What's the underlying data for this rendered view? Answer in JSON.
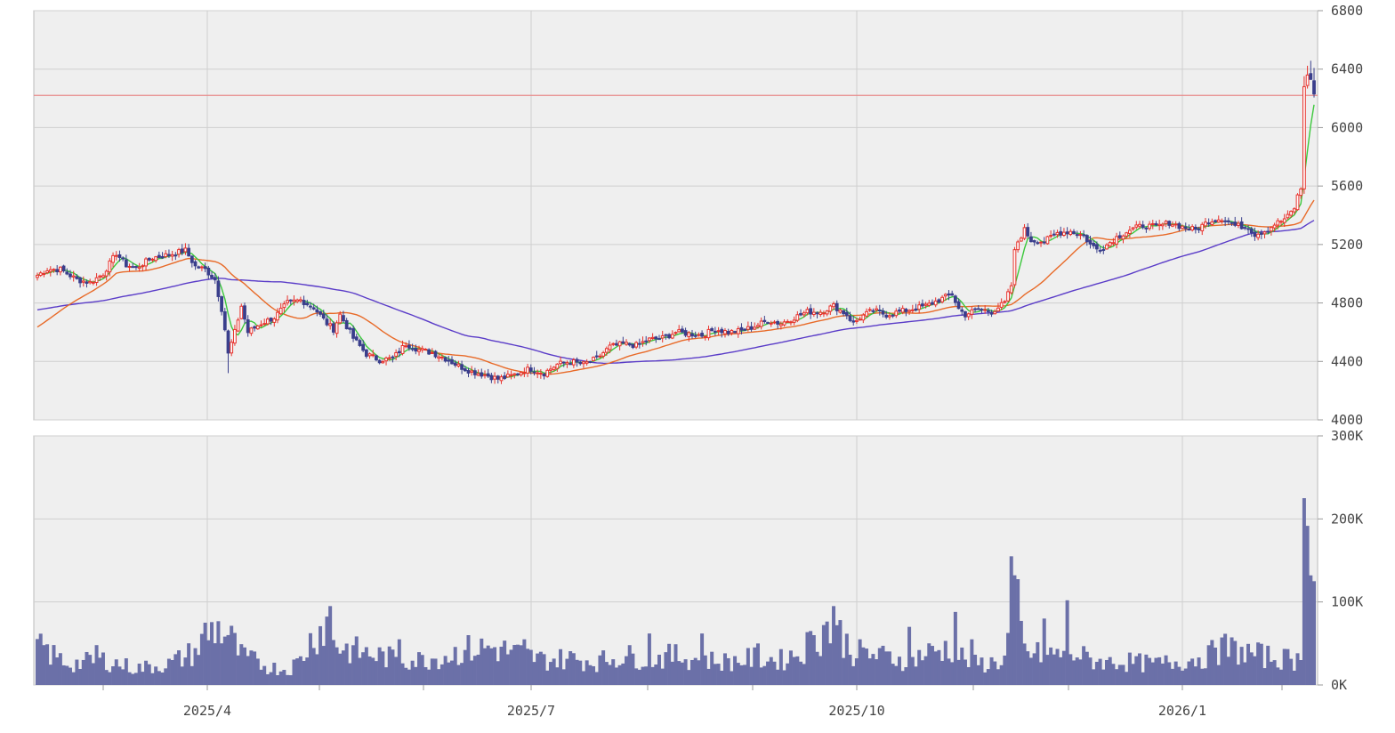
{
  "chart_data": [
    {
      "type": "candlestick",
      "title": "",
      "x_tick_labels": [
        "2025/4",
        "2025/7",
        "2025/10",
        "2026/1"
      ],
      "ylim": [
        4000,
        6800
      ],
      "y_ticks": [
        "4000",
        "4400",
        "4800",
        "5200",
        "5600",
        "6000",
        "6400",
        "6800"
      ],
      "grid": true,
      "reference_line": 6220,
      "colors": {
        "up": "#e8322c",
        "down": "#3a3f8c",
        "ma_short": "#3cc83c",
        "ma_mid": "#e86a28",
        "ma_long": "#5a3cc8",
        "ref": "#e88a8a",
        "panel_bg": "#efefef",
        "grid": "#cfcfcf"
      },
      "close_anchors": [
        [
          0,
          4990
        ],
        [
          3,
          5030
        ],
        [
          7,
          5030
        ],
        [
          12,
          4960
        ],
        [
          16,
          4940
        ],
        [
          20,
          5000
        ],
        [
          24,
          5140
        ],
        [
          27,
          5060
        ],
        [
          30,
          5040
        ],
        [
          35,
          5110
        ],
        [
          40,
          5130
        ],
        [
          45,
          5160
        ],
        [
          48,
          5050
        ],
        [
          51,
          5030
        ],
        [
          54,
          4960
        ],
        [
          56,
          4760
        ],
        [
          57,
          4620
        ],
        [
          58,
          4450
        ],
        [
          60,
          4600
        ],
        [
          62,
          4780
        ],
        [
          64,
          4600
        ],
        [
          68,
          4660
        ],
        [
          72,
          4700
        ],
        [
          76,
          4800
        ],
        [
          80,
          4820
        ],
        [
          84,
          4770
        ],
        [
          88,
          4660
        ],
        [
          90,
          4620
        ],
        [
          92,
          4720
        ],
        [
          96,
          4560
        ],
        [
          100,
          4450
        ],
        [
          104,
          4410
        ],
        [
          108,
          4420
        ],
        [
          112,
          4520
        ],
        [
          116,
          4480
        ],
        [
          120,
          4460
        ],
        [
          124,
          4420
        ],
        [
          128,
          4370
        ],
        [
          132,
          4330
        ],
        [
          136,
          4310
        ],
        [
          140,
          4280
        ],
        [
          144,
          4300
        ],
        [
          148,
          4340
        ],
        [
          150,
          4350
        ],
        [
          154,
          4320
        ],
        [
          158,
          4380
        ],
        [
          162,
          4400
        ],
        [
          166,
          4380
        ],
        [
          170,
          4420
        ],
        [
          174,
          4500
        ],
        [
          178,
          4520
        ],
        [
          182,
          4510
        ],
        [
          186,
          4550
        ],
        [
          190,
          4560
        ],
        [
          194,
          4600
        ],
        [
          198,
          4590
        ],
        [
          202,
          4580
        ],
        [
          206,
          4620
        ],
        [
          210,
          4600
        ],
        [
          214,
          4610
        ],
        [
          218,
          4640
        ],
        [
          222,
          4680
        ],
        [
          226,
          4660
        ],
        [
          230,
          4700
        ],
        [
          234,
          4740
        ],
        [
          238,
          4740
        ],
        [
          242,
          4780
        ],
        [
          246,
          4720
        ],
        [
          248,
          4660
        ],
        [
          250,
          4700
        ],
        [
          254,
          4750
        ],
        [
          258,
          4720
        ],
        [
          262,
          4740
        ],
        [
          266,
          4760
        ],
        [
          270,
          4780
        ],
        [
          274,
          4820
        ],
        [
          278,
          4860
        ],
        [
          280,
          4760
        ],
        [
          282,
          4720
        ],
        [
          286,
          4760
        ],
        [
          290,
          4740
        ],
        [
          294,
          4800
        ],
        [
          296,
          4920
        ],
        [
          297,
          5150
        ],
        [
          298,
          5220
        ],
        [
          300,
          5300
        ],
        [
          302,
          5230
        ],
        [
          306,
          5220
        ],
        [
          310,
          5280
        ],
        [
          314,
          5290
        ],
        [
          318,
          5260
        ],
        [
          320,
          5200
        ],
        [
          322,
          5170
        ],
        [
          324,
          5180
        ],
        [
          328,
          5250
        ],
        [
          332,
          5300
        ],
        [
          336,
          5330
        ],
        [
          340,
          5320
        ],
        [
          344,
          5350
        ],
        [
          348,
          5320
        ],
        [
          352,
          5300
        ],
        [
          356,
          5360
        ],
        [
          360,
          5380
        ],
        [
          364,
          5330
        ],
        [
          368,
          5320
        ],
        [
          370,
          5270
        ],
        [
          374,
          5300
        ],
        [
          376,
          5340
        ],
        [
          378,
          5360
        ],
        [
          380,
          5390
        ],
        [
          382,
          5450
        ],
        [
          383,
          5530
        ],
        [
          384,
          5580
        ],
        [
          385,
          6280
        ],
        [
          386,
          6360
        ],
        [
          387,
          6330
        ],
        [
          388,
          6230
        ]
      ],
      "volume_ylim": [
        0,
        300000
      ],
      "volume_y_ticks": [
        "0K",
        "100K",
        "200K",
        "300K"
      ],
      "volume_anchors": [
        [
          0,
          45000
        ],
        [
          10,
          25000
        ],
        [
          20,
          30000
        ],
        [
          30,
          20000
        ],
        [
          40,
          25000
        ],
        [
          48,
          40000
        ],
        [
          54,
          70000
        ],
        [
          58,
          60000
        ],
        [
          62,
          35000
        ],
        [
          70,
          22000
        ],
        [
          76,
          18000
        ],
        [
          80,
          30000
        ],
        [
          84,
          60000
        ],
        [
          88,
          75000
        ],
        [
          92,
          45000
        ],
        [
          100,
          38000
        ],
        [
          108,
          32000
        ],
        [
          116,
          30000
        ],
        [
          124,
          35000
        ],
        [
          130,
          42000
        ],
        [
          138,
          45000
        ],
        [
          146,
          38000
        ],
        [
          154,
          30000
        ],
        [
          162,
          32000
        ],
        [
          170,
          28000
        ],
        [
          178,
          35000
        ],
        [
          186,
          32000
        ],
        [
          194,
          35000
        ],
        [
          202,
          30000
        ],
        [
          210,
          28000
        ],
        [
          218,
          32000
        ],
        [
          226,
          30000
        ],
        [
          232,
          40000
        ],
        [
          236,
          55000
        ],
        [
          240,
          70000
        ],
        [
          244,
          60000
        ],
        [
          248,
          40000
        ],
        [
          256,
          35000
        ],
        [
          264,
          30000
        ],
        [
          272,
          40000
        ],
        [
          278,
          45000
        ],
        [
          282,
          30000
        ],
        [
          288,
          25000
        ],
        [
          294,
          30000
        ],
        [
          296,
          90000
        ],
        [
          298,
          95000
        ],
        [
          300,
          40000
        ],
        [
          306,
          35000
        ],
        [
          314,
          40000
        ],
        [
          320,
          30000
        ],
        [
          330,
          28000
        ],
        [
          340,
          25000
        ],
        [
          350,
          30000
        ],
        [
          356,
          35000
        ],
        [
          360,
          45000
        ],
        [
          366,
          40000
        ],
        [
          372,
          35000
        ],
        [
          378,
          32000
        ],
        [
          384,
          30000
        ],
        [
          385,
          225000
        ],
        [
          388,
          125000
        ]
      ],
      "volume_spikes": [
        [
          2,
          48000
        ],
        [
          18,
          48000
        ],
        [
          51,
          75000
        ],
        [
          89,
          95000
        ],
        [
          110,
          55000
        ],
        [
          131,
          60000
        ],
        [
          148,
          55000
        ],
        [
          186,
          62000
        ],
        [
          202,
          62000
        ],
        [
          219,
          50000
        ],
        [
          236,
          60000
        ],
        [
          242,
          95000
        ],
        [
          250,
          55000
        ],
        [
          265,
          70000
        ],
        [
          279,
          88000
        ],
        [
          284,
          55000
        ],
        [
          296,
          155000
        ],
        [
          306,
          80000
        ],
        [
          313,
          102000
        ],
        [
          325,
          30000
        ],
        [
          358,
          45000
        ],
        [
          385,
          225000
        ],
        [
          387,
          132000
        ]
      ]
    }
  ]
}
